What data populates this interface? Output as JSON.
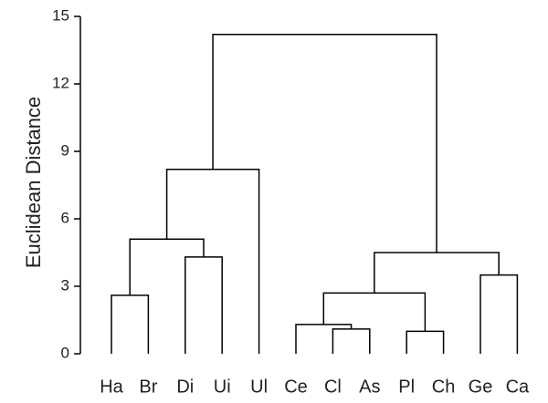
{
  "chart_data": {
    "type": "dendrogram",
    "y_label": "Euclidean Distance",
    "leaves": [
      "Ha",
      "Br",
      "Di",
      "Ui",
      "Ul",
      "Ce",
      "Cl",
      "As",
      "Pl",
      "Ch",
      "Ge",
      "Ca"
    ],
    "merges": [
      {
        "children": [
          6,
          7
        ],
        "height": 1.1
      },
      {
        "children": [
          8,
          9
        ],
        "height": 1.0
      },
      {
        "children": [
          5,
          12
        ],
        "height": 1.3
      },
      {
        "children": [
          0,
          1
        ],
        "height": 2.6
      },
      {
        "children": [
          14,
          13
        ],
        "height": 2.7
      },
      {
        "children": [
          10,
          11
        ],
        "height": 3.5
      },
      {
        "children": [
          2,
          3
        ],
        "height": 4.3
      },
      {
        "children": [
          16,
          17
        ],
        "height": 4.5
      },
      {
        "children": [
          15,
          18
        ],
        "height": 5.1
      },
      {
        "children": [
          20,
          4
        ],
        "height": 8.2
      },
      {
        "children": [
          21,
          19
        ],
        "height": 14.2
      }
    ],
    "color": "#000000",
    "ylim": [
      0,
      15
    ],
    "yticks": [
      0,
      3,
      6,
      9,
      12,
      15
    ]
  }
}
